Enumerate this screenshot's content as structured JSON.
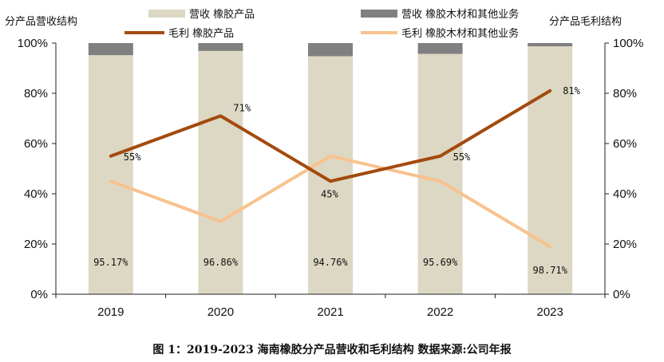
{
  "caption": "图 1：2019-2023 海南橡胶分产品营收和毛利结构    数据来源:公司年报",
  "chart_data": {
    "type": "bar+line",
    "categories": [
      "2019",
      "2020",
      "2021",
      "2022",
      "2023"
    ],
    "left_axis_title": "分产品营收结构",
    "right_axis_title": "分产品毛利结构",
    "left_ylim": [
      0,
      100
    ],
    "right_ylim": [
      0,
      100
    ],
    "y_ticks": [
      "0%",
      "20%",
      "40%",
      "60%",
      "80%",
      "100%"
    ],
    "bar_series": [
      {
        "name": "营收  橡胶产品",
        "values": [
          95.17,
          96.86,
          94.76,
          95.69,
          98.71
        ],
        "color": "#ddd8c4",
        "labels": [
          "95.17%",
          "96.86%",
          "94.76%",
          "95.69%",
          "98.71%"
        ]
      },
      {
        "name": "营收  橡胶木材和其他业务",
        "values": [
          4.83,
          3.14,
          5.24,
          4.31,
          1.29
        ],
        "color": "#808080"
      }
    ],
    "line_series": [
      {
        "name": "毛利  橡胶产品",
        "values": [
          55,
          71,
          45,
          55,
          81
        ],
        "color": "#a34a0f",
        "labels": [
          "55%",
          "71%",
          "45%",
          "55%",
          "81%"
        ]
      },
      {
        "name": "毛利  橡胶木材和其他业务",
        "values": [
          45,
          29,
          55,
          45,
          19
        ],
        "color": "#f8c28e"
      }
    ],
    "grid": false
  }
}
